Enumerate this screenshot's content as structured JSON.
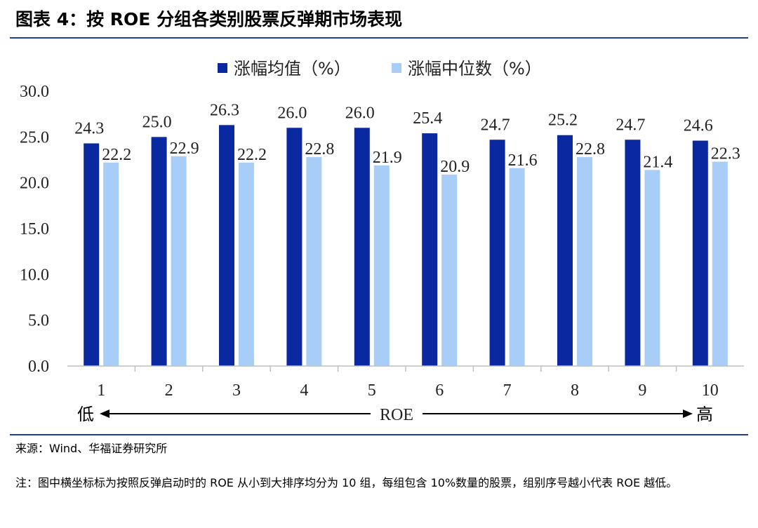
{
  "title": "图表 4：按 ROE 分组各类别股票反弹期市场表现",
  "chart_data": {
    "type": "bar",
    "categories": [
      "1",
      "2",
      "3",
      "4",
      "5",
      "6",
      "7",
      "8",
      "9",
      "10"
    ],
    "series": [
      {
        "name": "涨幅均值（%）",
        "color": "#0a28a0",
        "values": [
          24.3,
          25.0,
          26.3,
          26.0,
          26.0,
          25.4,
          24.7,
          25.2,
          24.7,
          24.6
        ]
      },
      {
        "name": "涨幅中位数（%）",
        "color": "#a8cdf7",
        "values": [
          22.2,
          22.9,
          22.2,
          22.8,
          21.9,
          20.9,
          21.6,
          22.8,
          21.4,
          22.3
        ]
      }
    ],
    "ylim": [
      0,
      30
    ],
    "yticks": [
      "0.0",
      "5.0",
      "10.0",
      "15.0",
      "20.0",
      "25.0",
      "30.0"
    ],
    "legend_position": "top",
    "grid": false,
    "axis_arrow": {
      "left_label": "低",
      "center_label": "ROE",
      "right_label": "高"
    }
  },
  "source": "来源：Wind、华福证券研究所",
  "note": "注：图中横坐标标为按照反弹启动时的 ROE 从小到大排序均分为 10 组，每组包含 10%数量的股票，组别序号越小代表 ROE 越低。"
}
